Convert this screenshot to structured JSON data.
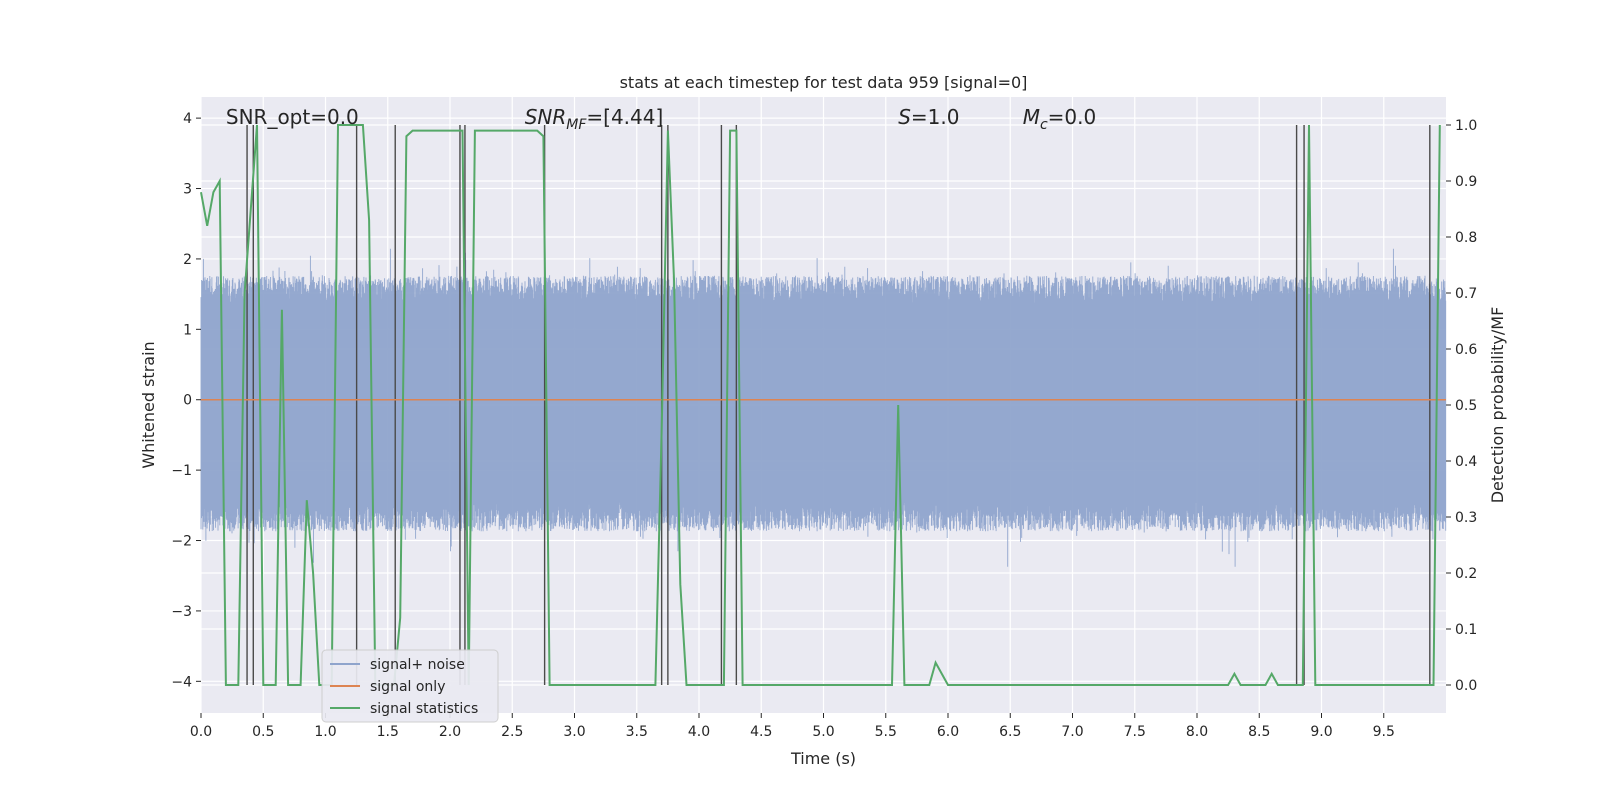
{
  "chart_data": {
    "type": "line",
    "title": "stats at each timestep for test data 959 [signal=0]",
    "xlabel": "Time (s)",
    "ylabel": "Whitened strain",
    "y2label": "Detection probability/MF",
    "xlim": [
      0,
      10
    ],
    "ylim": [
      -4.45,
      4.3
    ],
    "y2lim": [
      -0.05,
      1.05
    ],
    "xticks": [
      0.0,
      0.5,
      1.0,
      1.5,
      2.0,
      2.5,
      3.0,
      3.5,
      4.0,
      4.5,
      5.0,
      5.5,
      6.0,
      6.5,
      7.0,
      7.5,
      8.0,
      8.5,
      9.0,
      9.5
    ],
    "xtick_labels": [
      "0.0",
      "0.5",
      "1.0",
      "1.5",
      "2.0",
      "2.5",
      "3.0",
      "3.5",
      "4.0",
      "4.5",
      "5.0",
      "5.5",
      "6.0",
      "6.5",
      "7.0",
      "7.5",
      "8.0",
      "8.5",
      "9.0",
      "9.5"
    ],
    "yticks": [
      4,
      3,
      2,
      1,
      0,
      -1,
      -2,
      -3,
      -4
    ],
    "ytick_labels": [
      "4",
      "3",
      "2",
      "1",
      "0",
      "−1",
      "−2",
      "−3",
      "−4"
    ],
    "y2ticks": [
      1.0,
      0.9,
      0.8,
      0.7,
      0.6,
      0.5,
      0.4,
      0.3,
      0.2,
      0.1,
      0.0
    ],
    "y2tick_labels": [
      "1.0",
      "0.9",
      "0.8",
      "0.7",
      "0.6",
      "0.5",
      "0.4",
      "0.3",
      "0.2",
      "0.1",
      "0.0"
    ],
    "grid": true,
    "legend_position": "lower-left",
    "colors": {
      "background": "#eaeaf2",
      "grid": "#ffffff",
      "signal_noise": "#8fa4cc",
      "signal_only": "#dd8452",
      "signal_statistics": "#55a868",
      "vlines": "#4a4a4a"
    },
    "annotations": [
      {
        "x": 0.2,
        "prefix": "SNR_opt=0.0",
        "italic": "",
        "sub": "",
        "suffix": ""
      },
      {
        "x": 2.6,
        "prefix": "",
        "italic": "SNR",
        "sub": "MF",
        "suffix": "=[4.44]"
      },
      {
        "x": 5.6,
        "prefix": "",
        "italic": "S",
        "sub": "",
        "suffix": "=1.0"
      },
      {
        "x": 6.6,
        "prefix": "",
        "italic": "M",
        "sub": "c",
        "suffix": "=0.0"
      }
    ],
    "series": [
      {
        "name": "signal+ noise",
        "style": "noise-band",
        "n_samples": 4096,
        "typical_amplitude": [
          -1.7,
          1.6
        ]
      },
      {
        "name": "signal only",
        "values_constant": 0.0
      },
      {
        "name": "signal statistics",
        "axis": "right",
        "x": [
          0.0,
          0.05,
          0.1,
          0.15,
          0.2,
          0.25,
          0.3,
          0.35,
          0.4,
          0.45,
          0.5,
          0.55,
          0.6,
          0.65,
          0.7,
          0.75,
          0.8,
          0.85,
          0.9,
          0.95,
          1.0,
          1.05,
          1.1,
          1.15,
          1.2,
          1.25,
          1.3,
          1.35,
          1.4,
          1.45,
          1.5,
          1.55,
          1.6,
          1.65,
          1.7,
          1.8,
          1.9,
          2.0,
          2.05,
          2.1,
          2.15,
          2.2,
          2.25,
          2.3,
          2.4,
          2.5,
          2.6,
          2.7,
          2.75,
          2.8,
          2.85,
          3.0,
          3.2,
          3.4,
          3.6,
          3.65,
          3.7,
          3.75,
          3.8,
          3.85,
          3.9,
          4.0,
          4.1,
          4.15,
          4.2,
          4.25,
          4.3,
          4.35,
          4.5,
          5.0,
          5.5,
          5.55,
          5.6,
          5.65,
          5.7,
          5.8,
          5.85,
          5.9,
          6.0,
          6.5,
          6.9,
          6.95,
          7.0,
          7.5,
          8.0,
          8.25,
          8.3,
          8.35,
          8.5,
          8.55,
          8.6,
          8.65,
          8.7,
          8.75,
          8.8,
          8.85,
          8.9,
          8.95,
          9.0,
          9.5,
          9.8,
          9.85,
          9.9,
          9.95
        ],
        "values": [
          0.88,
          0.82,
          0.88,
          0.9,
          0.0,
          0.0,
          0.0,
          0.7,
          0.85,
          1.0,
          0.0,
          0.0,
          0.0,
          0.67,
          0.0,
          0.0,
          0.0,
          0.33,
          0.2,
          0.0,
          0.0,
          0.0,
          1.0,
          1.0,
          1.0,
          1.0,
          1.0,
          0.83,
          0.0,
          0.0,
          0.0,
          0.0,
          0.12,
          0.98,
          0.99,
          0.99,
          0.99,
          0.99,
          0.99,
          0.99,
          0.0,
          0.99,
          0.99,
          0.99,
          0.99,
          0.99,
          0.99,
          0.99,
          0.98,
          0.0,
          0.0,
          0.0,
          0.0,
          0.0,
          0.0,
          0.0,
          0.45,
          0.99,
          0.72,
          0.18,
          0.0,
          0.0,
          0.0,
          0.0,
          0.0,
          0.99,
          0.99,
          0.0,
          0.0,
          0.0,
          0.0,
          0.0,
          0.5,
          0.0,
          0.0,
          0.0,
          0.0,
          0.04,
          0.0,
          0.0,
          0.0,
          0.0,
          0.0,
          0.0,
          0.0,
          0.0,
          0.02,
          0.0,
          0.0,
          0.0,
          0.02,
          0.0,
          0.0,
          0.0,
          0.0,
          0.0,
          1.0,
          0.0,
          0.0,
          0.0,
          0.0,
          0.0,
          0.0,
          1.0
        ]
      }
    ],
    "vertical_lines_x": [
      0.37,
      0.42,
      1.25,
      1.56,
      2.08,
      2.12,
      2.76,
      3.7,
      3.75,
      4.18,
      4.3,
      8.8,
      8.86,
      9.87
    ]
  }
}
